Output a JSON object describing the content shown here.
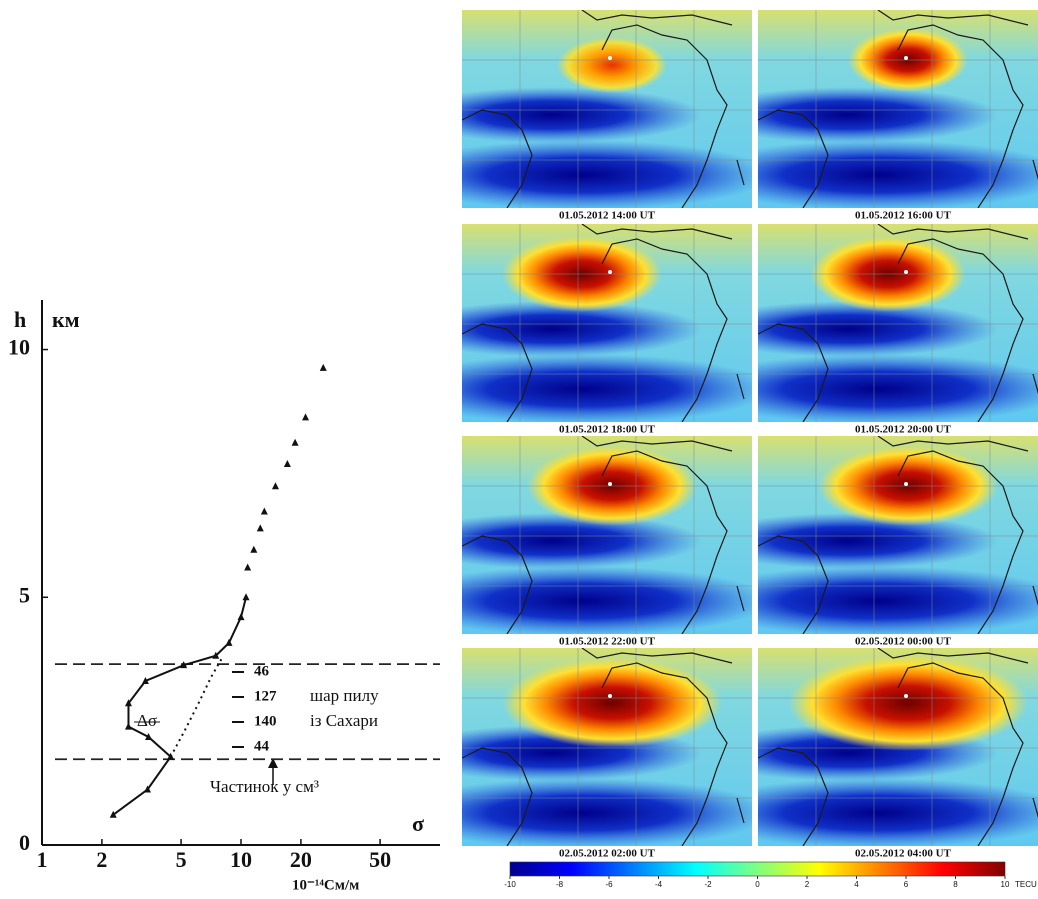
{
  "chart_data": {
    "type": "line",
    "log_x": true,
    "xlim": [
      1,
      100
    ],
    "ylim": [
      0,
      11
    ],
    "xticks": [
      1,
      2,
      5,
      10,
      20,
      50
    ],
    "yticks": [
      0,
      5,
      10
    ],
    "y_label": "h",
    "y_unit": "км",
    "x_label": "σ",
    "x_unit": "10⁻¹⁴См/м",
    "series": [
      {
        "color": "#111111",
        "line_style": "solid",
        "marker": "triangle",
        "x": [
          2.28,
          3.39,
          4.43,
          3.43,
          2.72,
          2.72,
          3.31,
          5.15,
          7.47,
          8.7,
          10,
          10.6
        ],
        "values": [
          0.61,
          1.12,
          1.78,
          2.18,
          2.39,
          2.86,
          3.31,
          3.63,
          3.82,
          4.08,
          4.6,
          5.0
        ]
      },
      {
        "color": "#111111",
        "line_style": "none",
        "marker": "triangle",
        "x": [
          10.8,
          11.6,
          12.5,
          13.1,
          14.9,
          17.1,
          18.7,
          21.1,
          25.9
        ],
        "values": [
          5.6,
          5.96,
          6.39,
          6.73,
          7.24,
          7.69,
          8.12,
          8.63,
          9.63
        ]
      },
      {
        "color": "#111111",
        "line_style": "dotted",
        "marker": "none",
        "x": [
          4.43,
          5.2,
          6.1,
          7.1,
          8.1
        ],
        "values": [
          1.78,
          2.3,
          2.85,
          3.4,
          3.8
        ]
      }
    ],
    "hlines": [
      3.65,
      1.73
    ],
    "annotations": [
      "Δσ",
      "шар пилу",
      "із Сахари",
      "Частинок у см³"
    ],
    "particle_counts": [
      46,
      127,
      140,
      44
    ]
  },
  "maps": {
    "captions": [
      "01.05.2012 14:00 UT",
      "01.05.2012 16:00 UT",
      "01.05.2012 18:00 UT",
      "01.05.2012 20:00 UT",
      "01.05.2012 22:00 UT",
      "02.05.2012 00:00 UT",
      "02.05.2012 02:00 UT",
      "02.05.2012 04:00 UT"
    ],
    "colorbar": {
      "lim": [
        -10,
        10
      ],
      "ticks": [
        -10,
        -8,
        -6,
        -4,
        -2,
        0,
        2,
        4,
        6,
        8,
        10
      ],
      "unit": "TECU"
    }
  }
}
